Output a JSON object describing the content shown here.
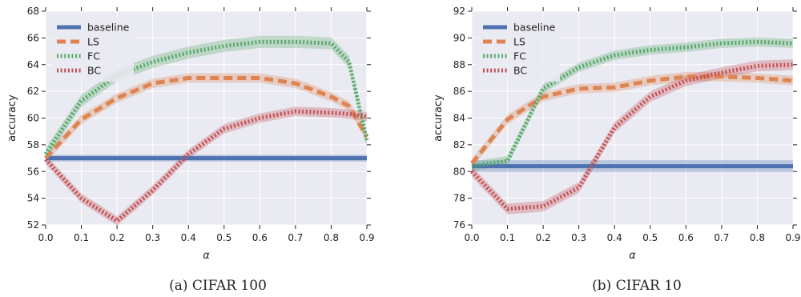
{
  "chart_data": [
    {
      "type": "line",
      "caption": "(a) CIFAR 100",
      "xlabel": "α",
      "ylabel": "accuracy",
      "xlim": [
        0.0,
        0.9
      ],
      "ylim": [
        52,
        68
      ],
      "xticks": [
        "0.0",
        "0.1",
        "0.2",
        "0.3",
        "0.4",
        "0.5",
        "0.6",
        "0.7",
        "0.8",
        "0.9"
      ],
      "yticks": [
        "52",
        "54",
        "56",
        "58",
        "60",
        "62",
        "64",
        "66",
        "68"
      ],
      "grid": true,
      "legend": "top-left",
      "series": [
        {
          "name": "baseline",
          "style": "solid",
          "color": "#4c72b0",
          "x": [
            0.0,
            0.9
          ],
          "values": [
            57.0,
            57.0
          ],
          "band": 0.25
        },
        {
          "name": "LS",
          "style": "dashed",
          "color": "#dd8452",
          "x": [
            0.0,
            0.1,
            0.2,
            0.3,
            0.4,
            0.5,
            0.6,
            0.7,
            0.8,
            0.85,
            0.9
          ],
          "values": [
            57.0,
            59.9,
            61.5,
            62.6,
            63.0,
            63.0,
            63.0,
            62.6,
            61.6,
            60.9,
            58.6
          ],
          "band": 0.35
        },
        {
          "name": "FC",
          "style": "dotted",
          "color": "#55a868",
          "x": [
            0.0,
            0.1,
            0.2,
            0.3,
            0.4,
            0.5,
            0.6,
            0.7,
            0.8,
            0.85,
            0.9
          ],
          "values": [
            57.3,
            61.3,
            63.2,
            64.2,
            64.9,
            65.4,
            65.7,
            65.7,
            65.6,
            64.2,
            58.3
          ],
          "band": 0.45
        },
        {
          "name": "BC",
          "style": "dotted",
          "color": "#c44e52",
          "x": [
            0.0,
            0.1,
            0.2,
            0.3,
            0.4,
            0.5,
            0.6,
            0.7,
            0.8,
            0.85,
            0.9
          ],
          "values": [
            56.9,
            54.0,
            52.3,
            54.6,
            57.3,
            59.2,
            60.0,
            60.5,
            60.4,
            60.3,
            60.1
          ],
          "band": 0.35
        }
      ]
    },
    {
      "type": "line",
      "caption": "(b) CIFAR 10",
      "xlabel": "α",
      "ylabel": "accuracy",
      "xlim": [
        0.0,
        0.9
      ],
      "ylim": [
        76,
        92
      ],
      "xticks": [
        "0.0",
        "0.1",
        "0.2",
        "0.3",
        "0.4",
        "0.5",
        "0.6",
        "0.7",
        "0.8",
        "0.9"
      ],
      "yticks": [
        "76",
        "78",
        "80",
        "82",
        "84",
        "86",
        "88",
        "90",
        "92"
      ],
      "grid": true,
      "legend": "top-left",
      "series": [
        {
          "name": "baseline",
          "style": "solid",
          "color": "#4c72b0",
          "x": [
            0.0,
            0.9
          ],
          "values": [
            80.4,
            80.4
          ],
          "band": 0.45
        },
        {
          "name": "LS",
          "style": "dashed",
          "color": "#dd8452",
          "x": [
            0.0,
            0.1,
            0.2,
            0.3,
            0.4,
            0.5,
            0.6,
            0.7,
            0.8,
            0.9
          ],
          "values": [
            80.6,
            83.9,
            85.6,
            86.2,
            86.3,
            86.8,
            87.1,
            87.1,
            87.0,
            86.8
          ],
          "band": 0.35
        },
        {
          "name": "FC",
          "style": "dotted",
          "color": "#55a868",
          "x": [
            0.0,
            0.1,
            0.2,
            0.3,
            0.4,
            0.5,
            0.6,
            0.7,
            0.8,
            0.9
          ],
          "values": [
            80.4,
            80.8,
            86.2,
            87.8,
            88.7,
            89.1,
            89.3,
            89.6,
            89.7,
            89.6
          ],
          "band": 0.35
        },
        {
          "name": "BC",
          "style": "dotted",
          "color": "#c44e52",
          "x": [
            0.0,
            0.1,
            0.2,
            0.3,
            0.4,
            0.5,
            0.6,
            0.7,
            0.8,
            0.9
          ],
          "values": [
            80.0,
            77.2,
            77.4,
            78.8,
            83.3,
            85.6,
            86.8,
            87.4,
            87.9,
            88.0
          ],
          "band": 0.4
        }
      ]
    }
  ]
}
